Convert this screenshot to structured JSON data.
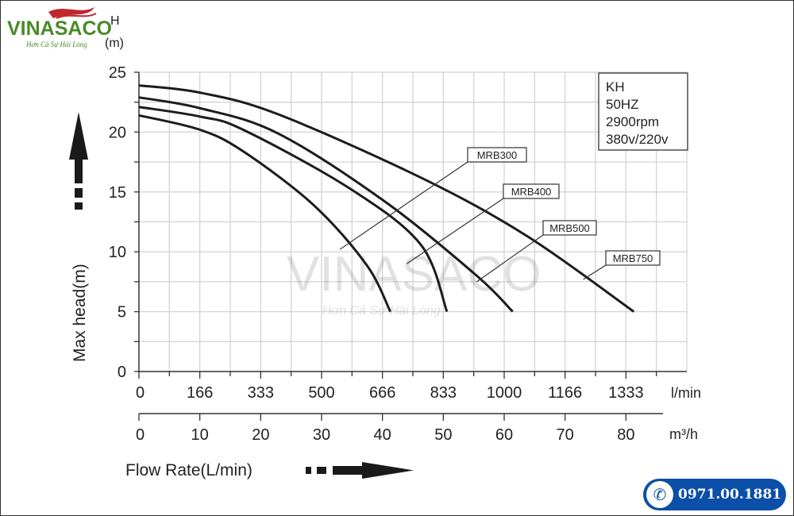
{
  "logo": {
    "name": "VINASACO",
    "slogan": "Hơn Cả Sự Hài Lòng"
  },
  "watermark": {
    "name": "VINASACO",
    "slogan": "Hơn Cả Sự Hài Lòng"
  },
  "phone": "0971.00.1881",
  "chart_data": {
    "type": "line",
    "title": "",
    "ylabel": "Max head(m)",
    "yunit_top": "H",
    "yunit_bottom": "(m)",
    "xlabel": "Flow Rate(L/min)",
    "x_unit_lmin": "l/min",
    "x_unit_m3h": "m³/h",
    "xlim_m3h": [
      0,
      90
    ],
    "ylim": [
      0,
      25
    ],
    "grid": true,
    "y_ticks": [
      0,
      5,
      10,
      15,
      20,
      25
    ],
    "x_ticks_m3h": [
      0,
      10,
      20,
      30,
      40,
      50,
      60,
      70,
      80
    ],
    "x_ticks_lmin": [
      "0",
      "166",
      "333",
      "500",
      "666",
      "833",
      "1000",
      "1166",
      "1333"
    ],
    "info_box": [
      "KH",
      "50HZ",
      "2900rpm",
      "380v/220v"
    ],
    "series": [
      {
        "name": "MRB300",
        "x": [
          0,
          10,
          17.1,
          28.7,
          37.4,
          41.3
        ],
        "y": [
          21.4,
          20.2,
          18.4,
          13.9,
          8.9,
          5.0
        ]
      },
      {
        "name": "MRB400",
        "x": [
          0,
          10,
          17.1,
          34.6,
          46.3,
          50.6
        ],
        "y": [
          22.1,
          21.3,
          20.2,
          15.3,
          10.6,
          5.0
        ]
      },
      {
        "name": "MRB500",
        "x": [
          0,
          10,
          22.8,
          40.4,
          55.5,
          61.4
        ],
        "y": [
          22.9,
          22.0,
          19.9,
          14.2,
          8.0,
          5.0
        ]
      },
      {
        "name": "MRB750",
        "x": [
          0,
          10,
          22.8,
          46.3,
          63.8,
          81.3
        ],
        "y": [
          23.9,
          23.3,
          21.5,
          16.2,
          11.3,
          5.0
        ]
      }
    ]
  }
}
